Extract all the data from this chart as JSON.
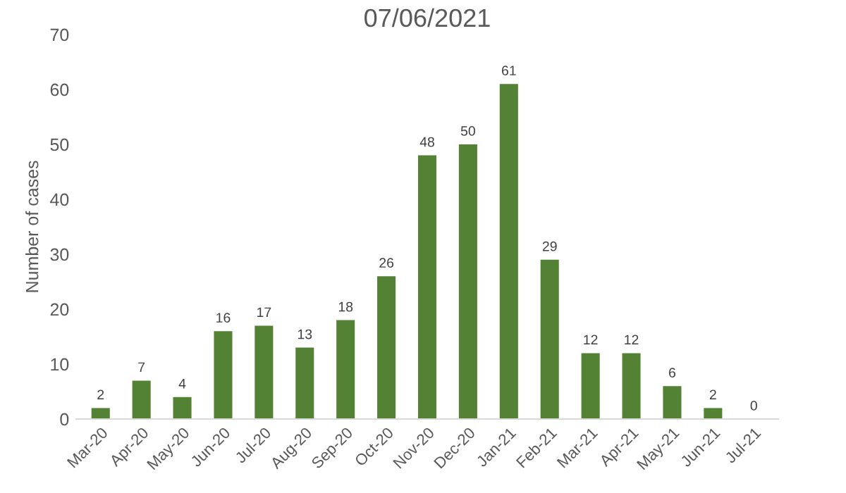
{
  "chart_data": {
    "type": "bar",
    "title": "07/06/2021",
    "ylabel": "Number of cases",
    "categories": [
      "Mar-20",
      "Apr-20",
      "May-20",
      "Jun-20",
      "Jul-20",
      "Aug-20",
      "Sep-20",
      "Oct-20",
      "Nov-20",
      "Dec-20",
      "Jan-21",
      "Feb-21",
      "Mar-21",
      "Apr-21",
      "May-21",
      "Jun-21",
      "Jul-21"
    ],
    "values": [
      2,
      7,
      4,
      16,
      17,
      13,
      18,
      26,
      48,
      50,
      61,
      29,
      12,
      12,
      6,
      2,
      0
    ],
    "color": "#548235",
    "ylim": [
      0,
      70
    ],
    "yticks": [
      0,
      10,
      20,
      30,
      40,
      50,
      60,
      70
    ],
    "grid": false,
    "legend": false,
    "data_labels": true
  }
}
